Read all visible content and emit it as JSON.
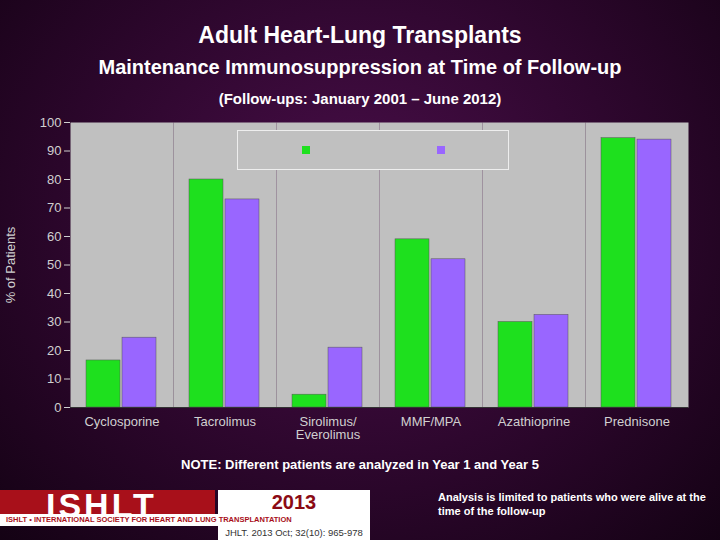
{
  "chart_data": {
    "type": "bar",
    "title": "Adult Heart-Lung Transplants",
    "subtitle": [
      "Maintenance Immunosuppression at Time of Follow-up",
      "(Follow-ups: January 2001 – June 2012)"
    ],
    "y_label": "% of Patients",
    "categories": [
      "Cyclosporine",
      "Tacrolimus",
      "Sirolimus/ Everolimus",
      "MMF/MPA",
      "Azathioprine",
      "Prednisone"
    ],
    "series": [
      {
        "name": null,
        "color": "#1ee01e",
        "values": [
          16.5,
          80,
          4.5,
          59,
          30,
          94.5
        ]
      },
      {
        "name": null,
        "color": "#9966ff",
        "values": [
          24.5,
          73,
          21,
          52,
          32.5,
          94
        ]
      }
    ],
    "ylim": [
      0,
      100
    ],
    "yticks": [
      0,
      10,
      20,
      30,
      40,
      50,
      60,
      70,
      80,
      90,
      100
    ],
    "grid": false,
    "legend": "top",
    "annotations": {
      "note": "NOTE: Different patients are analyzed in Year 1 and Year 5",
      "analysis": "Analysis is limited to patients who were alive at the time of the follow-up",
      "logo": "ISHLT",
      "logo_subtitle": "ISHLT • INTERNATIONAL SOCIETY FOR HEART AND LUNG TRANSPLANTATION",
      "year": "2013",
      "citation": "JHLT. 2013 Oct; 32(10): 965-978"
    }
  }
}
